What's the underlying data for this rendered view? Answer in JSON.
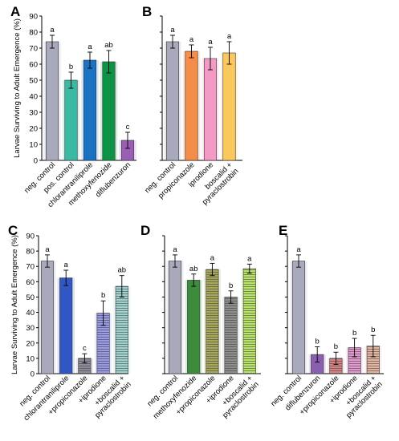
{
  "y_axis_label": "Larvae Surviving to Adult Emergence (%)",
  "chart_data": [
    {
      "panel": "A",
      "type": "bar",
      "ylim": [
        0,
        90
      ],
      "yticks": [
        0,
        10,
        20,
        30,
        40,
        50,
        60,
        70,
        80,
        90
      ],
      "ylabel": "Larvae Surviving to Adult Emergence (%)",
      "categories": [
        "neg. control",
        "pos. control",
        "chlorantraniliprole",
        "methoxyfenozide",
        "diflubenzuron"
      ],
      "values": [
        74,
        50,
        62.5,
        61.5,
        12.5
      ],
      "errors": [
        4,
        5,
        5,
        7,
        5
      ],
      "letters": [
        "a",
        "b",
        "a",
        "ab",
        "c"
      ],
      "colors": [
        "#a9a9bc",
        "#3bb9a3",
        "#1a72c2",
        "#0e9245",
        "#9a5fb5"
      ]
    },
    {
      "panel": "B",
      "type": "bar",
      "ylim": [
        0,
        90
      ],
      "categories": [
        "neg. control",
        "propiconazole",
        "iprodione",
        "boscalid +\npyraclostrobin"
      ],
      "values": [
        74,
        68,
        63.5,
        67
      ],
      "errors": [
        4,
        4,
        7,
        7
      ],
      "letters": [
        "a",
        "a",
        "a",
        "a"
      ],
      "colors": [
        "#a9a9bc",
        "#f48c4a",
        "#f49bc5",
        "#fbc85e"
      ]
    },
    {
      "panel": "C",
      "type": "bar",
      "ylim": [
        0,
        90
      ],
      "yticks": [
        0,
        10,
        20,
        30,
        40,
        50,
        60,
        70,
        80,
        90
      ],
      "ylabel": "Larvae Surviving to Adult Emergence (%)",
      "categories": [
        "neg. control",
        "chlorantraniliprole",
        "+propiconazole",
        "+iprodione",
        "+boscalid +\npyraclostrobin"
      ],
      "values": [
        73.5,
        62.5,
        10,
        39.5,
        57
      ],
      "errors": [
        4,
        5,
        3,
        8,
        7
      ],
      "letters": [
        "a",
        "a",
        "c",
        "b",
        "ab"
      ],
      "colors": [
        "#a9a9bc",
        "#3057c4",
        "#8c8c9a",
        "#9a9ae6",
        "#9fd3cf"
      ],
      "hatched": [
        false,
        false,
        true,
        true,
        true
      ]
    },
    {
      "panel": "D",
      "type": "bar",
      "ylim": [
        0,
        90
      ],
      "categories": [
        "neg. control",
        "methoxyfenozide",
        "+propiconazole",
        "+iprodione",
        "+boscalid +\npyraclostrobin"
      ],
      "values": [
        73.5,
        61,
        68,
        50,
        68.5
      ],
      "errors": [
        4,
        4,
        4,
        4,
        3
      ],
      "letters": [
        "a",
        "ab",
        "a",
        "b",
        "a"
      ],
      "colors": [
        "#a9a9bc",
        "#3d8b3d",
        "#a7a85a",
        "#8e8e8e",
        "#b9e36a"
      ],
      "hatched": [
        false,
        false,
        true,
        true,
        true
      ]
    },
    {
      "panel": "E",
      "type": "bar",
      "ylim": [
        0,
        90
      ],
      "categories": [
        "neg. control",
        "diflubenzuron",
        "+propiconazole",
        "+iprodione",
        "+boscalid +\npyraclostrobin"
      ],
      "values": [
        73.5,
        12.5,
        10,
        17,
        18
      ],
      "errors": [
        4,
        5,
        4,
        6,
        7
      ],
      "letters": [
        "a",
        "b",
        "b",
        "b",
        "b"
      ],
      "colors": [
        "#a9a9bc",
        "#8a5fb0",
        "#d98484",
        "#e49ad0",
        "#e3b5a0"
      ],
      "hatched": [
        false,
        false,
        true,
        true,
        true
      ]
    }
  ]
}
